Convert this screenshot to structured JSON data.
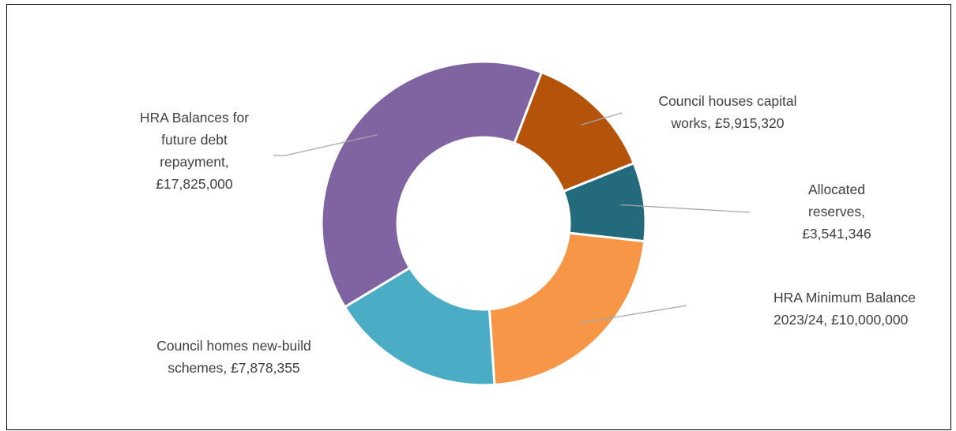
{
  "chart_data": {
    "type": "pie",
    "variant": "doughnut",
    "start_angle_deg": 21,
    "direction": "clockwise",
    "slices": [
      {
        "label_lines": [
          "Council houses capital",
          "works, £5,915,320"
        ],
        "label": "Council houses capital works",
        "value": 5915320,
        "value_text": "£5,915,320",
        "color": "#b45309"
      },
      {
        "label_lines": [
          "Allocated",
          "reserves,",
          "£3,541,346"
        ],
        "label": "Allocated reserves",
        "value": 3541346,
        "value_text": "£3,541,346",
        "color": "#236b7c"
      },
      {
        "label_lines": [
          "HRA Minimum Balance",
          "2023/24, £10,000,000"
        ],
        "label": "HRA Minimum Balance 2023/24",
        "value": 10000000,
        "value_text": "£10,000,000",
        "color": "#f79646"
      },
      {
        "label_lines": [
          "Council homes new-build",
          "schemes, £7,878,355"
        ],
        "label": "Council homes new-build schemes",
        "value": 7878355,
        "value_text": "£7,878,355",
        "color": "#4bacc6"
      },
      {
        "label_lines": [
          "HRA Balances for",
          "future debt",
          "repayment,",
          "£17,825,000"
        ],
        "label": "HRA Balances for future debt repayment",
        "value": 17825000,
        "value_text": "£17,825,000",
        "color": "#8064a2"
      }
    ]
  }
}
